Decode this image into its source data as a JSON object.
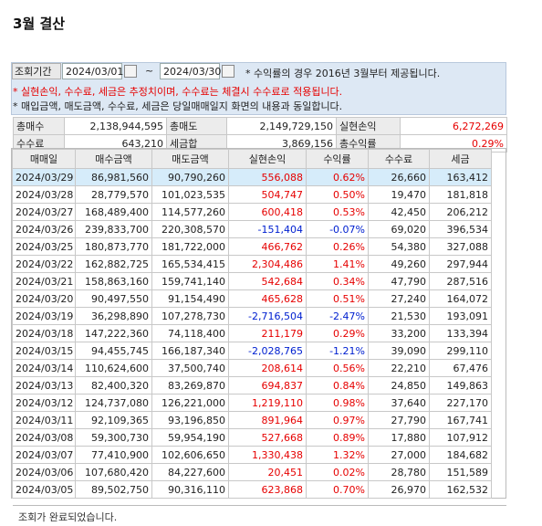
{
  "header": {
    "title": "3월 결산"
  },
  "search": {
    "label": "조회기간",
    "start": "2024/03/01",
    "tilde": "~",
    "end": "2024/03/30",
    "note": "* 수익률의 경우 2016년 3월부터 제공됩니다."
  },
  "notes": [
    "* 실현손익, 수수료, 세금은 추정치이며, 수수료는 체결시 수수료로 적용됩니다.",
    "* 매입금액, 매도금액, 수수료, 세금은 당일매매일지 화면의 내용과 동일합니다."
  ],
  "summary": {
    "rows": [
      [
        "총매수",
        "2,138,944,595",
        "총매도",
        "2,149,729,150",
        "실현손익",
        "6,272,269"
      ],
      [
        "수수료",
        "643,210",
        "세금합",
        "3,869,156",
        "총수익률",
        "0.29%"
      ]
    ]
  },
  "table": {
    "columns": [
      "매매일",
      "매수금액",
      "매도금액",
      "실현손익",
      "수익률",
      "수수료",
      "세금"
    ],
    "rows": [
      [
        "2024/03/29",
        "86,981,560",
        "90,790,260",
        "556,088",
        "0.62%",
        "26,660",
        "163,412"
      ],
      [
        "2024/03/28",
        "28,779,570",
        "101,023,535",
        "504,747",
        "0.50%",
        "19,470",
        "181,818"
      ],
      [
        "2024/03/27",
        "168,489,400",
        "114,577,260",
        "600,418",
        "0.53%",
        "42,450",
        "206,212"
      ],
      [
        "2024/03/26",
        "239,833,700",
        "220,308,570",
        "-151,404",
        "-0.07%",
        "69,020",
        "396,534"
      ],
      [
        "2024/03/25",
        "180,873,770",
        "181,722,000",
        "466,762",
        "0.26%",
        "54,380",
        "327,088"
      ],
      [
        "2024/03/22",
        "162,882,725",
        "165,534,415",
        "2,304,486",
        "1.41%",
        "49,260",
        "297,944"
      ],
      [
        "2024/03/21",
        "158,863,160",
        "159,741,140",
        "542,684",
        "0.34%",
        "47,790",
        "287,516"
      ],
      [
        "2024/03/20",
        "90,497,550",
        "91,154,490",
        "465,628",
        "0.51%",
        "27,240",
        "164,072"
      ],
      [
        "2024/03/19",
        "36,298,890",
        "107,278,730",
        "-2,716,504",
        "-2.47%",
        "21,530",
        "193,091"
      ],
      [
        "2024/03/18",
        "147,222,360",
        "74,118,400",
        "211,179",
        "0.29%",
        "33,200",
        "133,394"
      ],
      [
        "2024/03/15",
        "94,455,745",
        "166,187,340",
        "-2,028,765",
        "-1.21%",
        "39,090",
        "299,110"
      ],
      [
        "2024/03/14",
        "110,624,600",
        "37,500,740",
        "208,614",
        "0.56%",
        "22,210",
        "67,476"
      ],
      [
        "2024/03/13",
        "82,400,320",
        "83,269,870",
        "694,837",
        "0.84%",
        "24,850",
        "149,863"
      ],
      [
        "2024/03/12",
        "124,737,080",
        "126,221,000",
        "1,219,110",
        "0.98%",
        "37,640",
        "227,170"
      ],
      [
        "2024/03/11",
        "92,109,365",
        "93,196,850",
        "891,964",
        "0.97%",
        "27,790",
        "167,741"
      ],
      [
        "2024/03/08",
        "59,300,730",
        "59,954,190",
        "527,668",
        "0.89%",
        "17,880",
        "107,912"
      ],
      [
        "2024/03/07",
        "77,410,900",
        "102,606,650",
        "1,330,438",
        "1.32%",
        "27,000",
        "184,682"
      ],
      [
        "2024/03/06",
        "107,680,420",
        "84,227,600",
        "20,451",
        "0.02%",
        "28,780",
        "151,589"
      ],
      [
        "2024/03/05",
        "89,502,750",
        "90,316,110",
        "623,868",
        "0.70%",
        "26,970",
        "162,532"
      ]
    ]
  },
  "status": "조회가 완료되었습니다."
}
